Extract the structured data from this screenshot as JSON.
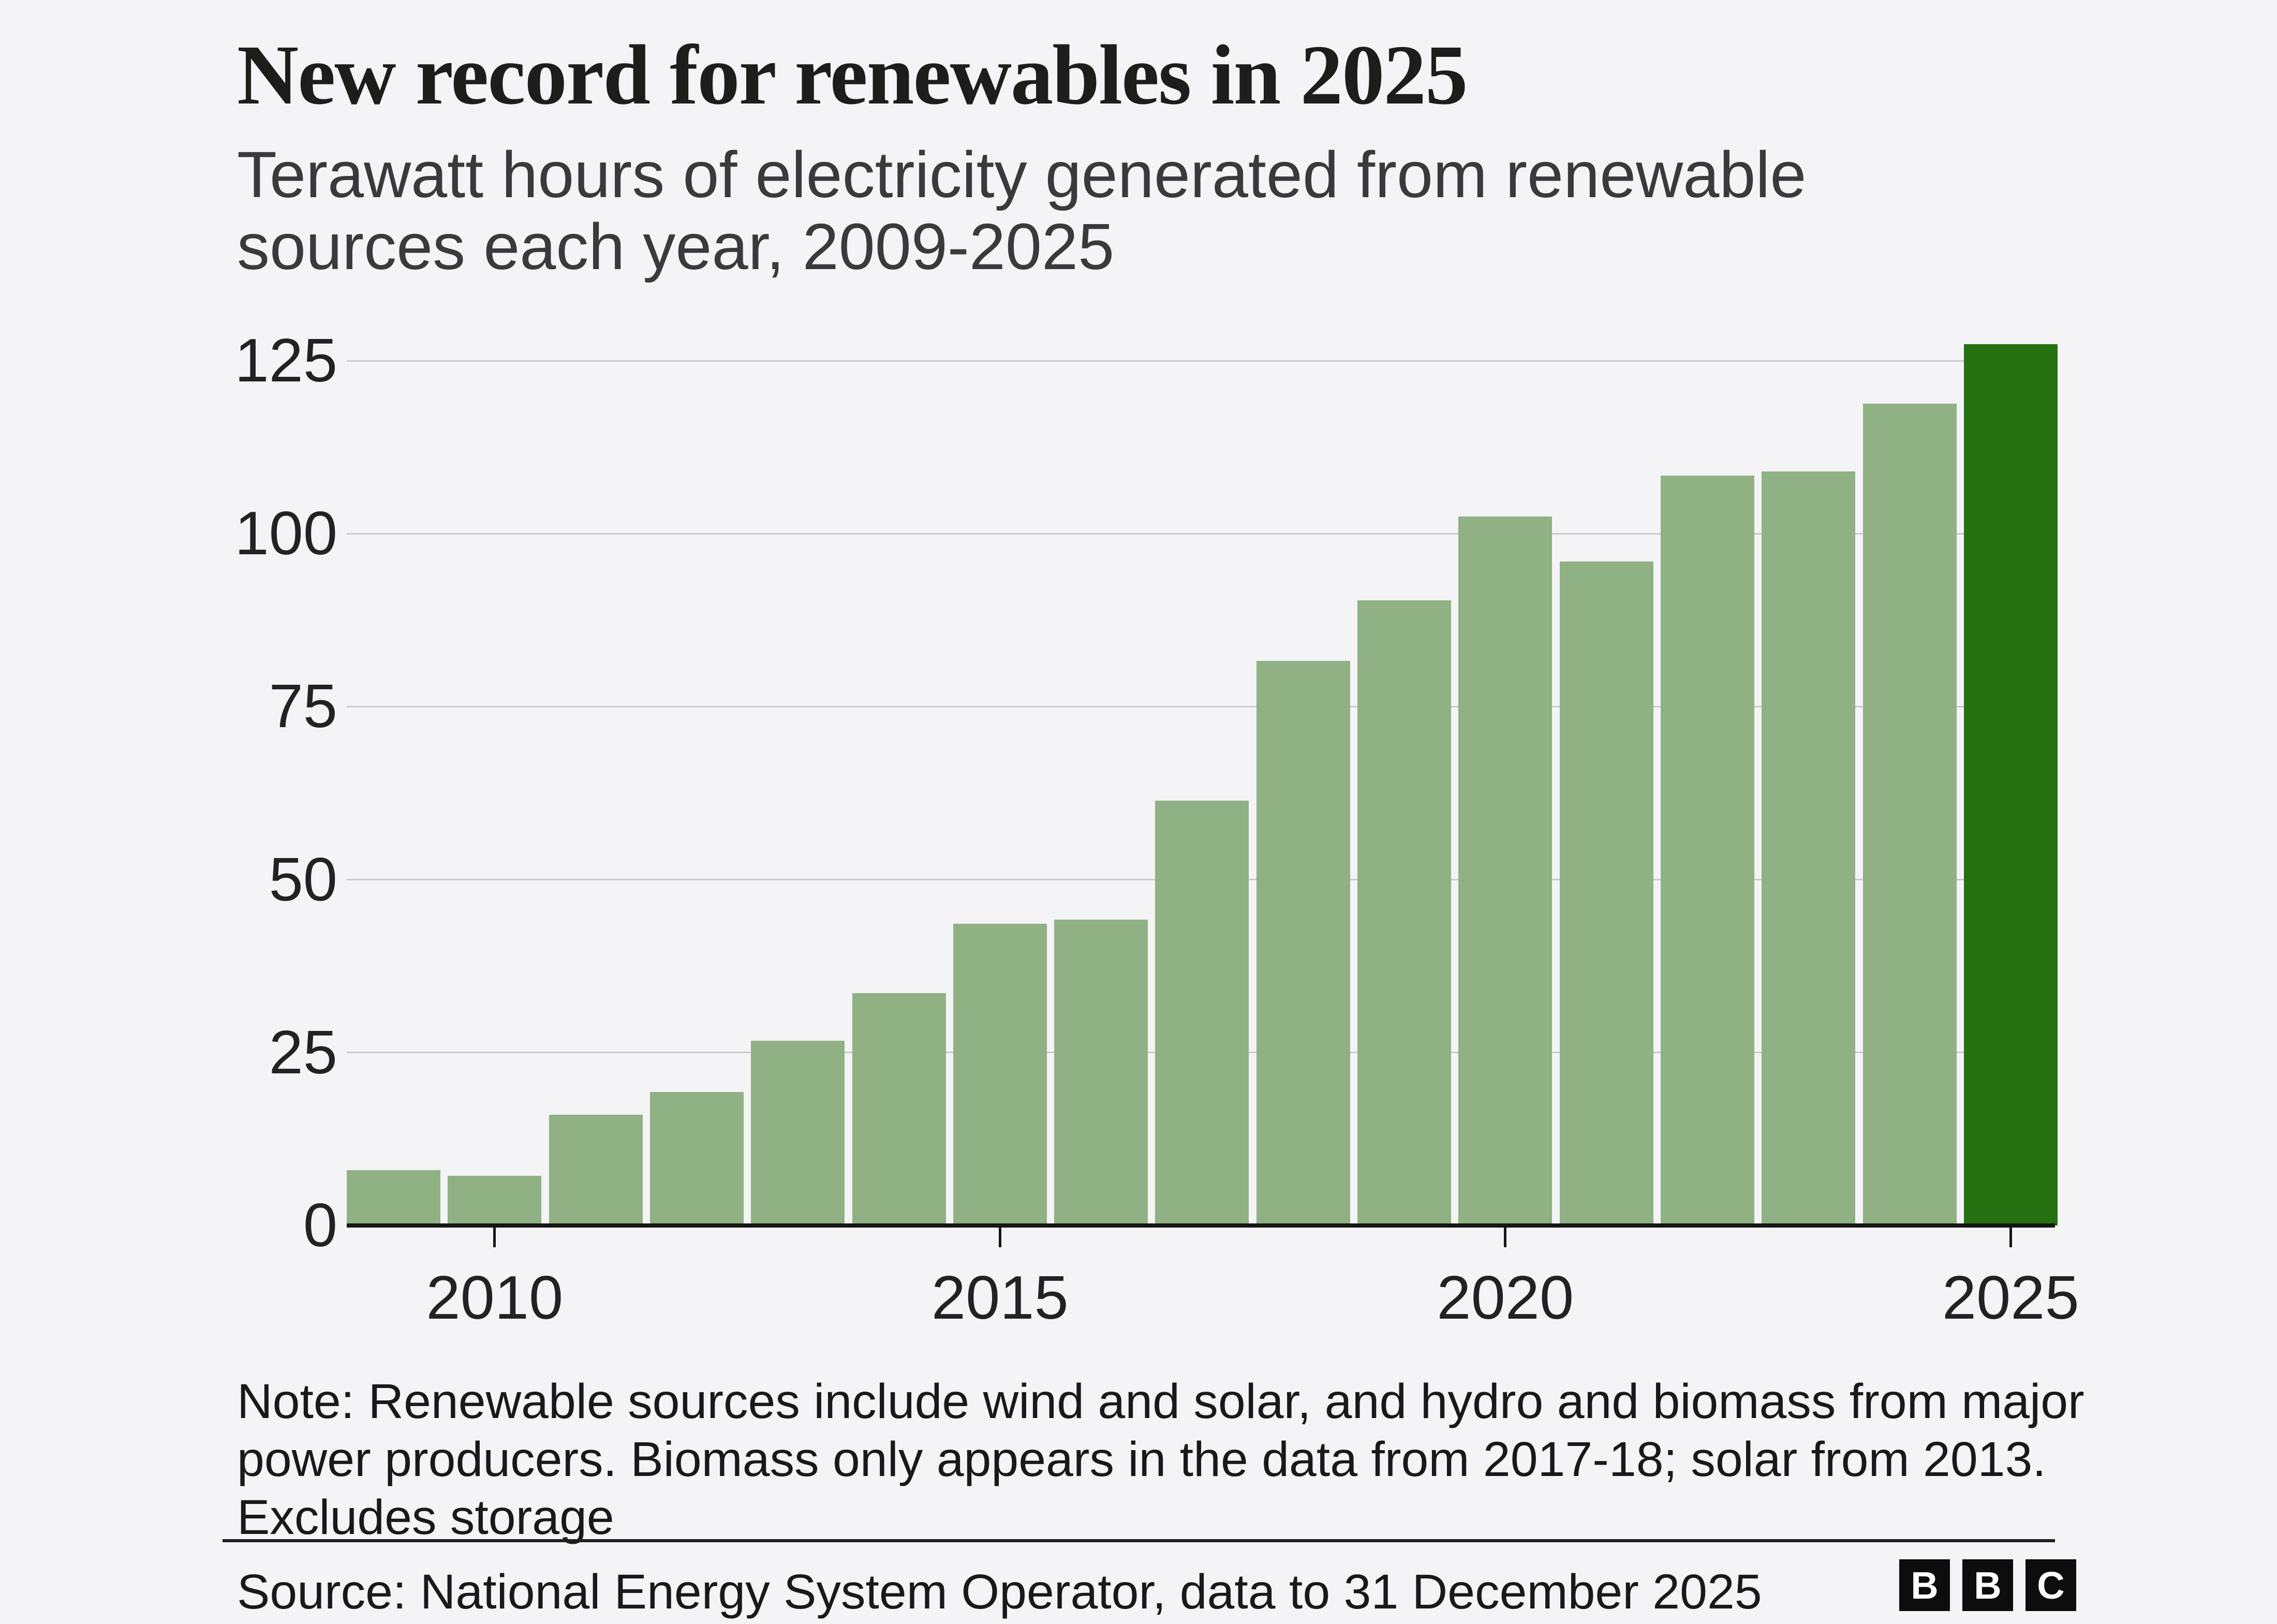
{
  "header": {
    "title": "New record for renewables in 2025",
    "subtitle": "Terawatt hours of electricity generated from renewable\nsources each year, 2009-2025"
  },
  "chart_data": {
    "type": "bar",
    "title": "New record for renewables in 2025",
    "subtitle": "Terawatt hours of electricity generated from renewable sources each year, 2009-2025",
    "xlabel": "",
    "ylabel": "",
    "categories": [
      "2009",
      "2010",
      "2011",
      "2012",
      "2013",
      "2014",
      "2015",
      "2016",
      "2017",
      "2018",
      "2019",
      "2020",
      "2021",
      "2022",
      "2023",
      "2024",
      "2025"
    ],
    "values": [
      8,
      7.2,
      16,
      19.3,
      26.7,
      33.6,
      43.6,
      44.2,
      61.4,
      81.6,
      90.4,
      102.5,
      96,
      108.4,
      109,
      118.8,
      127.4
    ],
    "highlight_category": "2025",
    "ylim": [
      0,
      130
    ],
    "yticks": [
      0,
      25,
      50,
      75,
      100,
      125
    ],
    "xtick_labels": [
      "2010",
      "2015",
      "2020",
      "2025"
    ],
    "grid": "horizontal",
    "legend_position": "none",
    "colors": {
      "bar": "#90b183",
      "highlight_bar": "#257011",
      "gridline": "#cbcbcb",
      "axis": "#161616",
      "background": "#f4f3f6",
      "tick_label": "#222222"
    }
  },
  "footer": {
    "note": "Note: Renewable sources include wind and solar, and hydro and biomass from major\npower producers. Biomass only appears in the data from 2017-18; solar from 2013.\nExcludes storage",
    "source": "Source: National Energy System Operator, data to 31 December 2025",
    "logo_letters": [
      "B",
      "B",
      "C"
    ]
  }
}
